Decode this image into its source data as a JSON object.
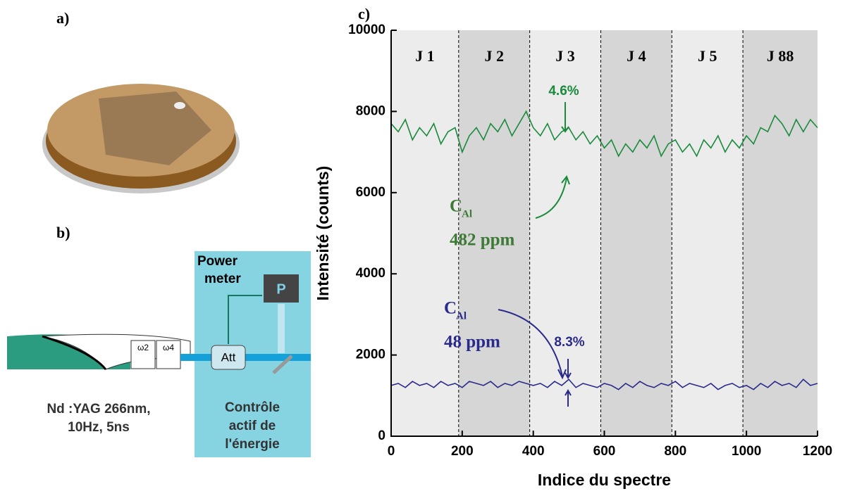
{
  "panels": {
    "a": "a)",
    "b": "b)"
  },
  "diagram": {
    "power_meter": [
      "Power",
      "meter"
    ],
    "sensor": "P",
    "attenuator": "Att",
    "harmonics": [
      "ω2",
      "ω4"
    ],
    "laser": [
      "Nd :YAG 266nm,",
      "10Hz, 5ns"
    ],
    "control": [
      "Contrôle",
      "actif de",
      "l'énergie"
    ]
  },
  "chart_data": {
    "type": "line",
    "panel_label": "c)",
    "xlabel": "Indice du spectre",
    "ylabel": "Intensité (counts)",
    "xlim": [
      0,
      1200
    ],
    "xticks": [
      0,
      200,
      400,
      600,
      800,
      1000,
      1200
    ],
    "ylim": [
      0,
      10000
    ],
    "yticks": [
      0,
      2000,
      4000,
      6000,
      8000,
      10000
    ],
    "regions": [
      {
        "label": "J 1",
        "start": 0,
        "end": 190,
        "color": "#ececec"
      },
      {
        "label": "J 2",
        "start": 190,
        "end": 390,
        "color": "#d6d6d6"
      },
      {
        "label": "J 3",
        "start": 390,
        "end": 590,
        "color": "#ececec"
      },
      {
        "label": "J 4",
        "start": 590,
        "end": 790,
        "color": "#d6d6d6"
      },
      {
        "label": "J 5",
        "start": 790,
        "end": 990,
        "color": "#ececec"
      },
      {
        "label": "J 88",
        "start": 990,
        "end": 1200,
        "color": "#d6d6d6"
      }
    ],
    "x": [
      0,
      20,
      40,
      60,
      80,
      100,
      120,
      140,
      160,
      180,
      200,
      220,
      240,
      260,
      280,
      300,
      320,
      340,
      360,
      380,
      400,
      420,
      440,
      460,
      480,
      500,
      520,
      540,
      560,
      580,
      600,
      620,
      640,
      660,
      680,
      700,
      720,
      740,
      760,
      780,
      800,
      820,
      840,
      860,
      880,
      900,
      920,
      940,
      960,
      980,
      1000,
      1020,
      1040,
      1060,
      1080,
      1100,
      1120,
      1140,
      1160,
      1180,
      1200
    ],
    "series": [
      {
        "color": "#1a8a3c",
        "values": [
          7700,
          7500,
          7800,
          7300,
          7600,
          7400,
          7700,
          7200,
          7500,
          7600,
          7000,
          7400,
          7600,
          7300,
          7700,
          7500,
          7800,
          7400,
          7700,
          8000,
          7600,
          7400,
          7700,
          7300,
          7500,
          7600,
          7300,
          7500,
          7200,
          7400,
          7100,
          7300,
          6900,
          7200,
          7000,
          7300,
          7100,
          7400,
          6900,
          7200,
          7300,
          7000,
          7200,
          6900,
          7300,
          7100,
          7400,
          7000,
          7300,
          7100,
          7400,
          7200,
          7600,
          7500,
          7900,
          7700,
          7400,
          7800,
          7500,
          7800,
          7600
        ]
      },
      {
        "color": "#2a2a8c",
        "values": [
          1250,
          1300,
          1200,
          1350,
          1250,
          1300,
          1200,
          1350,
          1250,
          1300,
          1200,
          1350,
          1300,
          1250,
          1350,
          1200,
          1300,
          1250,
          1350,
          1300,
          1250,
          1300,
          1200,
          1350,
          1250,
          1400,
          1200,
          1300,
          1250,
          1200,
          1300,
          1250,
          1150,
          1300,
          1200,
          1350,
          1250,
          1200,
          1300,
          1250,
          1350,
          1200,
          1300,
          1250,
          1200,
          1300,
          1150,
          1250,
          1300,
          1200,
          1250,
          1150,
          1300,
          1200,
          1350,
          1250,
          1300,
          1200,
          1400,
          1250,
          1300
        ]
      }
    ],
    "annotations": [
      {
        "text": "4.6%",
        "color": "#1a8a3c"
      },
      {
        "text": "C",
        "sub": "Al",
        "conc": "482 ppm",
        "color": "#3d7a35"
      },
      {
        "text": "8.3%",
        "color": "#2a2a8c"
      },
      {
        "text": "C",
        "sub": "Al",
        "conc": "48 ppm",
        "color": "#2a2a8c"
      }
    ]
  }
}
